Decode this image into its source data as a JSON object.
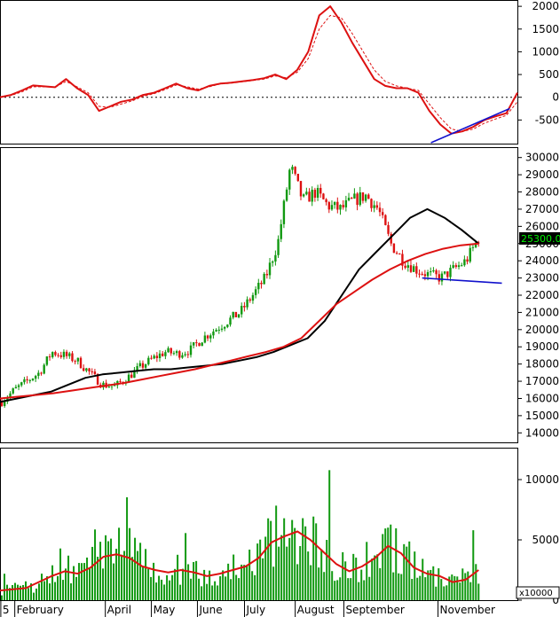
{
  "chart_data": [
    {
      "type": "line",
      "panel": "oscillator",
      "ylim": [
        -1000,
        2100
      ],
      "yticks": [
        "2000",
        "1500",
        "1000",
        "500",
        "0",
        "-500"
      ],
      "zero_line": true,
      "series": [
        {
          "color": "#dd1111",
          "style": "solid",
          "values": [
            0,
            50,
            150,
            260,
            240,
            220,
            400,
            200,
            50,
            -300,
            -200,
            -100,
            -50,
            50,
            100,
            200,
            300,
            200,
            150,
            250,
            300,
            320,
            350,
            380,
            420,
            500,
            400,
            600,
            1000,
            1800,
            2000,
            1650,
            1200,
            800,
            400,
            250,
            200,
            200,
            100,
            -300,
            -600,
            -800,
            -750,
            -650,
            -500,
            -420,
            -350,
            100
          ]
        },
        {
          "color": "#dd1111",
          "style": "dashed",
          "values": [
            0,
            40,
            120,
            230,
            230,
            220,
            350,
            230,
            100,
            -200,
            -220,
            -150,
            -80,
            20,
            80,
            170,
            270,
            230,
            180,
            230,
            290,
            310,
            340,
            370,
            400,
            470,
            430,
            550,
            850,
            1500,
            1800,
            1750,
            1400,
            1000,
            600,
            350,
            250,
            200,
            150,
            -150,
            -450,
            -700,
            -750,
            -700,
            -570,
            -480,
            -400,
            -100
          ]
        },
        {
          "color": "#1111cc",
          "style": "trendline",
          "x": [
            83.3,
            98.5
          ],
          "values": [
            -1000,
            -250
          ]
        }
      ]
    },
    {
      "type": "candlestick",
      "panel": "price",
      "ylim": [
        13500,
        30500
      ],
      "yticks": [
        "30000",
        "29000",
        "28000",
        "27000",
        "26000",
        "25000",
        "24000",
        "23000",
        "22000",
        "21000",
        "20000",
        "19000",
        "18000",
        "17000",
        "16000",
        "15000",
        "14000"
      ],
      "last_price_label": "25300.00",
      "series": [
        {
          "color": "#000000",
          "kind": "moving-average",
          "values": [
            15800,
            16000,
            16200,
            16400,
            16800,
            17200,
            17400,
            17500,
            17600,
            17700,
            17700,
            17800,
            17900,
            18000,
            18200,
            18400,
            18700,
            19100,
            19500,
            20500,
            22000,
            23500,
            24500,
            25500,
            26500,
            27000,
            26500,
            25800,
            25000
          ]
        },
        {
          "color": "#dd1111",
          "kind": "moving-average",
          "values": [
            16000,
            16100,
            16200,
            16300,
            16450,
            16600,
            16750,
            16900,
            17100,
            17300,
            17500,
            17700,
            17950,
            18200,
            18450,
            18700,
            19000,
            19500,
            20500,
            21500,
            22200,
            22900,
            23500,
            24000,
            24400,
            24700,
            24900,
            25000
          ]
        },
        {
          "color": "#1111cc",
          "kind": "trendline",
          "x": [
            81.6,
            97.0
          ],
          "values": [
            23000,
            22700
          ]
        }
      ],
      "price_path": [
        15800,
        16500,
        17000,
        17500,
        18700,
        18500,
        18200,
        17500,
        16800,
        16700,
        17200,
        17800,
        18300,
        18700,
        18600,
        18800,
        19500,
        20000,
        20500,
        21000,
        22000,
        23000,
        25000,
        29500,
        27500,
        28000,
        27200,
        27000,
        27500,
        27800,
        27000,
        25000,
        24000,
        23500,
        23200,
        23000,
        23500,
        24000,
        25300
      ]
    },
    {
      "type": "bar",
      "panel": "volume",
      "ylim": [
        0,
        12500
      ],
      "yticks": [
        "10000",
        "5000",
        "0"
      ],
      "unit_label": "x10000",
      "bar_color": "#119911",
      "series": [
        {
          "color": "#dd1111",
          "kind": "moving-average",
          "values": [
            800,
            900,
            1000,
            1500,
            2000,
            2400,
            2200,
            2700,
            3600,
            3800,
            3500,
            2800,
            2500,
            2300,
            2500,
            2300,
            2000,
            2200,
            2500,
            2800,
            3500,
            4800,
            5300,
            5700,
            5000,
            4000,
            3000,
            2400,
            2800,
            3500,
            4500,
            3900,
            2700,
            2200,
            2000,
            1500,
            1700,
            2500
          ]
        }
      ]
    }
  ],
  "x_axis": {
    "labels": [
      {
        "text": "5",
        "x": 0.5
      },
      {
        "text": "February",
        "x": 3.2
      },
      {
        "text": "April",
        "x": 20.7
      },
      {
        "text": "May",
        "x": 29.6
      },
      {
        "text": "June",
        "x": 38.5
      },
      {
        "text": "July",
        "x": 47.6
      },
      {
        "text": "August",
        "x": 57.4
      },
      {
        "text": "September",
        "x": 66.8
      },
      {
        "text": "November",
        "x": 85.0
      }
    ]
  }
}
